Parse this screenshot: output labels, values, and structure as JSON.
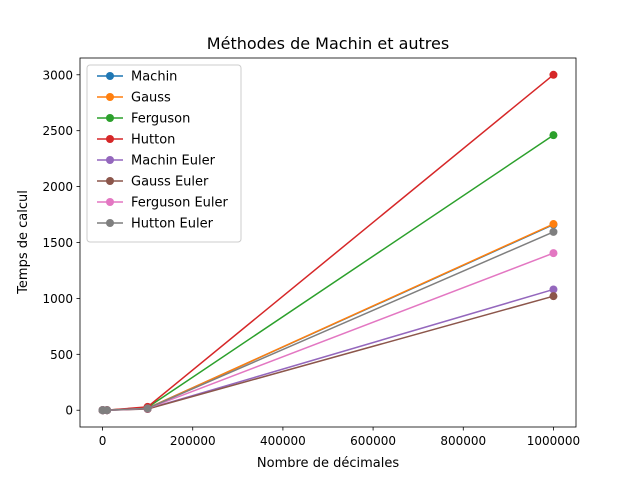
{
  "chart_data": {
    "type": "line",
    "title": "Méthodes de Machin et autres",
    "xlabel": "Nombre de décimales",
    "ylabel": "Temps de calcul",
    "xlim": [
      -50000,
      1050000
    ],
    "ylim": [
      -150,
      3150
    ],
    "x_ticks": [
      0,
      200000,
      400000,
      600000,
      800000,
      1000000
    ],
    "y_ticks": [
      0,
      500,
      1000,
      1500,
      2000,
      2500,
      3000
    ],
    "x_tick_labels": [
      "0",
      "200000",
      "400000",
      "600000",
      "800000",
      "1000000"
    ],
    "y_tick_labels": [
      "0",
      "500",
      "1000",
      "1500",
      "2000",
      "2500",
      "3000"
    ],
    "grid": false,
    "legend_position": "top-left",
    "x": [
      10,
      100,
      1000,
      10000,
      100000,
      1000000
    ],
    "series": [
      {
        "name": "Machin",
        "color": "#1f77b4",
        "values": [
          0,
          0,
          0,
          0.3,
          18,
          1660
        ]
      },
      {
        "name": "Gauss",
        "color": "#ff7f0e",
        "values": [
          0,
          0,
          0,
          0.3,
          18,
          1665
        ]
      },
      {
        "name": "Ferguson",
        "color": "#2ca02c",
        "values": [
          0,
          0,
          0,
          0.4,
          25,
          2460
        ]
      },
      {
        "name": "Hutton",
        "color": "#d62728",
        "values": [
          0,
          0,
          0,
          0.5,
          30,
          3000
        ]
      },
      {
        "name": "Machin Euler",
        "color": "#9467bd",
        "values": [
          0,
          0,
          0,
          0.2,
          12,
          1080
        ]
      },
      {
        "name": "Gauss Euler",
        "color": "#8c564b",
        "values": [
          0,
          0,
          0,
          0.2,
          11,
          1020
        ]
      },
      {
        "name": "Ferguson Euler",
        "color": "#e377c2",
        "values": [
          0,
          0,
          0,
          0.3,
          15,
          1405
        ]
      },
      {
        "name": "Hutton Euler",
        "color": "#7f7f7f",
        "values": [
          0,
          0,
          0,
          0.3,
          17,
          1595
        ]
      }
    ]
  }
}
